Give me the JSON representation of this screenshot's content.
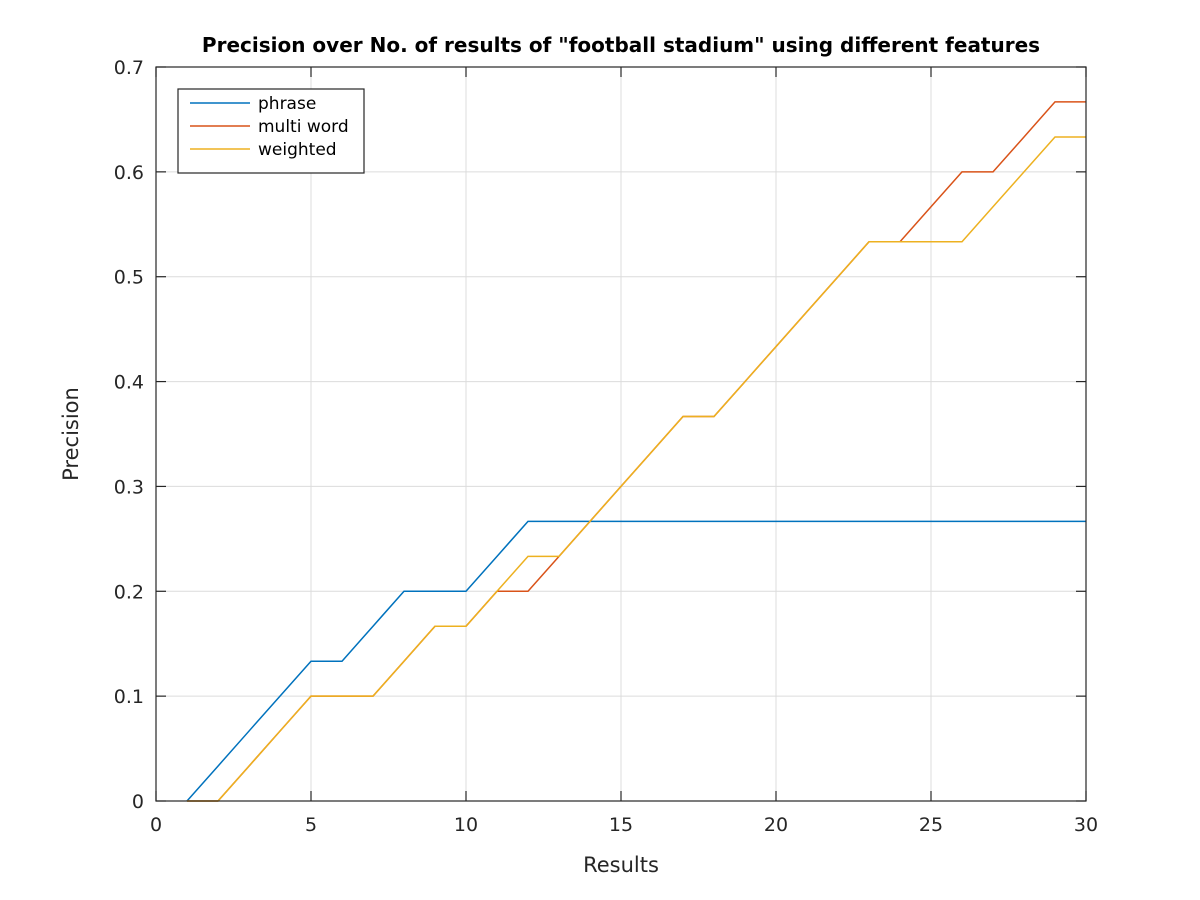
{
  "chart_data": {
    "type": "line",
    "title": "Precision over No. of results of \"football stadium\" using different features",
    "xlabel": "Results",
    "ylabel": "Precision",
    "xlim": [
      0,
      30
    ],
    "ylim": [
      0,
      0.7
    ],
    "xticks": [
      0,
      5,
      10,
      15,
      20,
      25,
      30
    ],
    "yticks": [
      0,
      0.1,
      0.2,
      0.3,
      0.4,
      0.5,
      0.6,
      0.7
    ],
    "xtick_labels": [
      "0",
      "5",
      "10",
      "15",
      "20",
      "25",
      "30"
    ],
    "ytick_labels": [
      "0",
      "0.1",
      "0.2",
      "0.3",
      "0.4",
      "0.5",
      "0.6",
      "0.7"
    ],
    "grid": true,
    "legend_position": "top-left",
    "x": [
      1,
      2,
      3,
      4,
      5,
      6,
      7,
      8,
      9,
      10,
      11,
      12,
      13,
      14,
      15,
      16,
      17,
      18,
      19,
      20,
      21,
      22,
      23,
      24,
      25,
      26,
      27,
      28,
      29,
      30
    ],
    "series": [
      {
        "name": "phrase",
        "color": "#0072BD",
        "values": [
          0,
          0.0333,
          0.0667,
          0.1,
          0.1333,
          0.1333,
          0.1667,
          0.2,
          0.2,
          0.2,
          0.2333,
          0.2667,
          0.2667,
          0.2667,
          0.2667,
          0.2667,
          0.2667,
          0.2667,
          0.2667,
          0.2667,
          0.2667,
          0.2667,
          0.2667,
          0.2667,
          0.2667,
          0.2667,
          0.2667,
          0.2667,
          0.2667,
          0.2667
        ]
      },
      {
        "name": "multi word",
        "color": "#D95319",
        "values": [
          0,
          0,
          0.0333,
          0.0667,
          0.1,
          0.1,
          0.1,
          0.1333,
          0.1667,
          0.1667,
          0.2,
          0.2,
          0.2333,
          0.2667,
          0.3,
          0.3333,
          0.3667,
          0.3667,
          0.4,
          0.4333,
          0.4667,
          0.5,
          0.5333,
          0.5333,
          0.5667,
          0.6,
          0.6,
          0.6333,
          0.6667,
          0.6667
        ]
      },
      {
        "name": "weighted",
        "color": "#EDB120",
        "values": [
          0,
          0,
          0.0333,
          0.0667,
          0.1,
          0.1,
          0.1,
          0.1333,
          0.1667,
          0.1667,
          0.2,
          0.2333,
          0.2333,
          0.2667,
          0.3,
          0.3333,
          0.3667,
          0.3667,
          0.4,
          0.4333,
          0.4667,
          0.5,
          0.5333,
          0.5333,
          0.5333,
          0.5333,
          0.5667,
          0.6,
          0.6333,
          0.6333
        ]
      }
    ]
  }
}
